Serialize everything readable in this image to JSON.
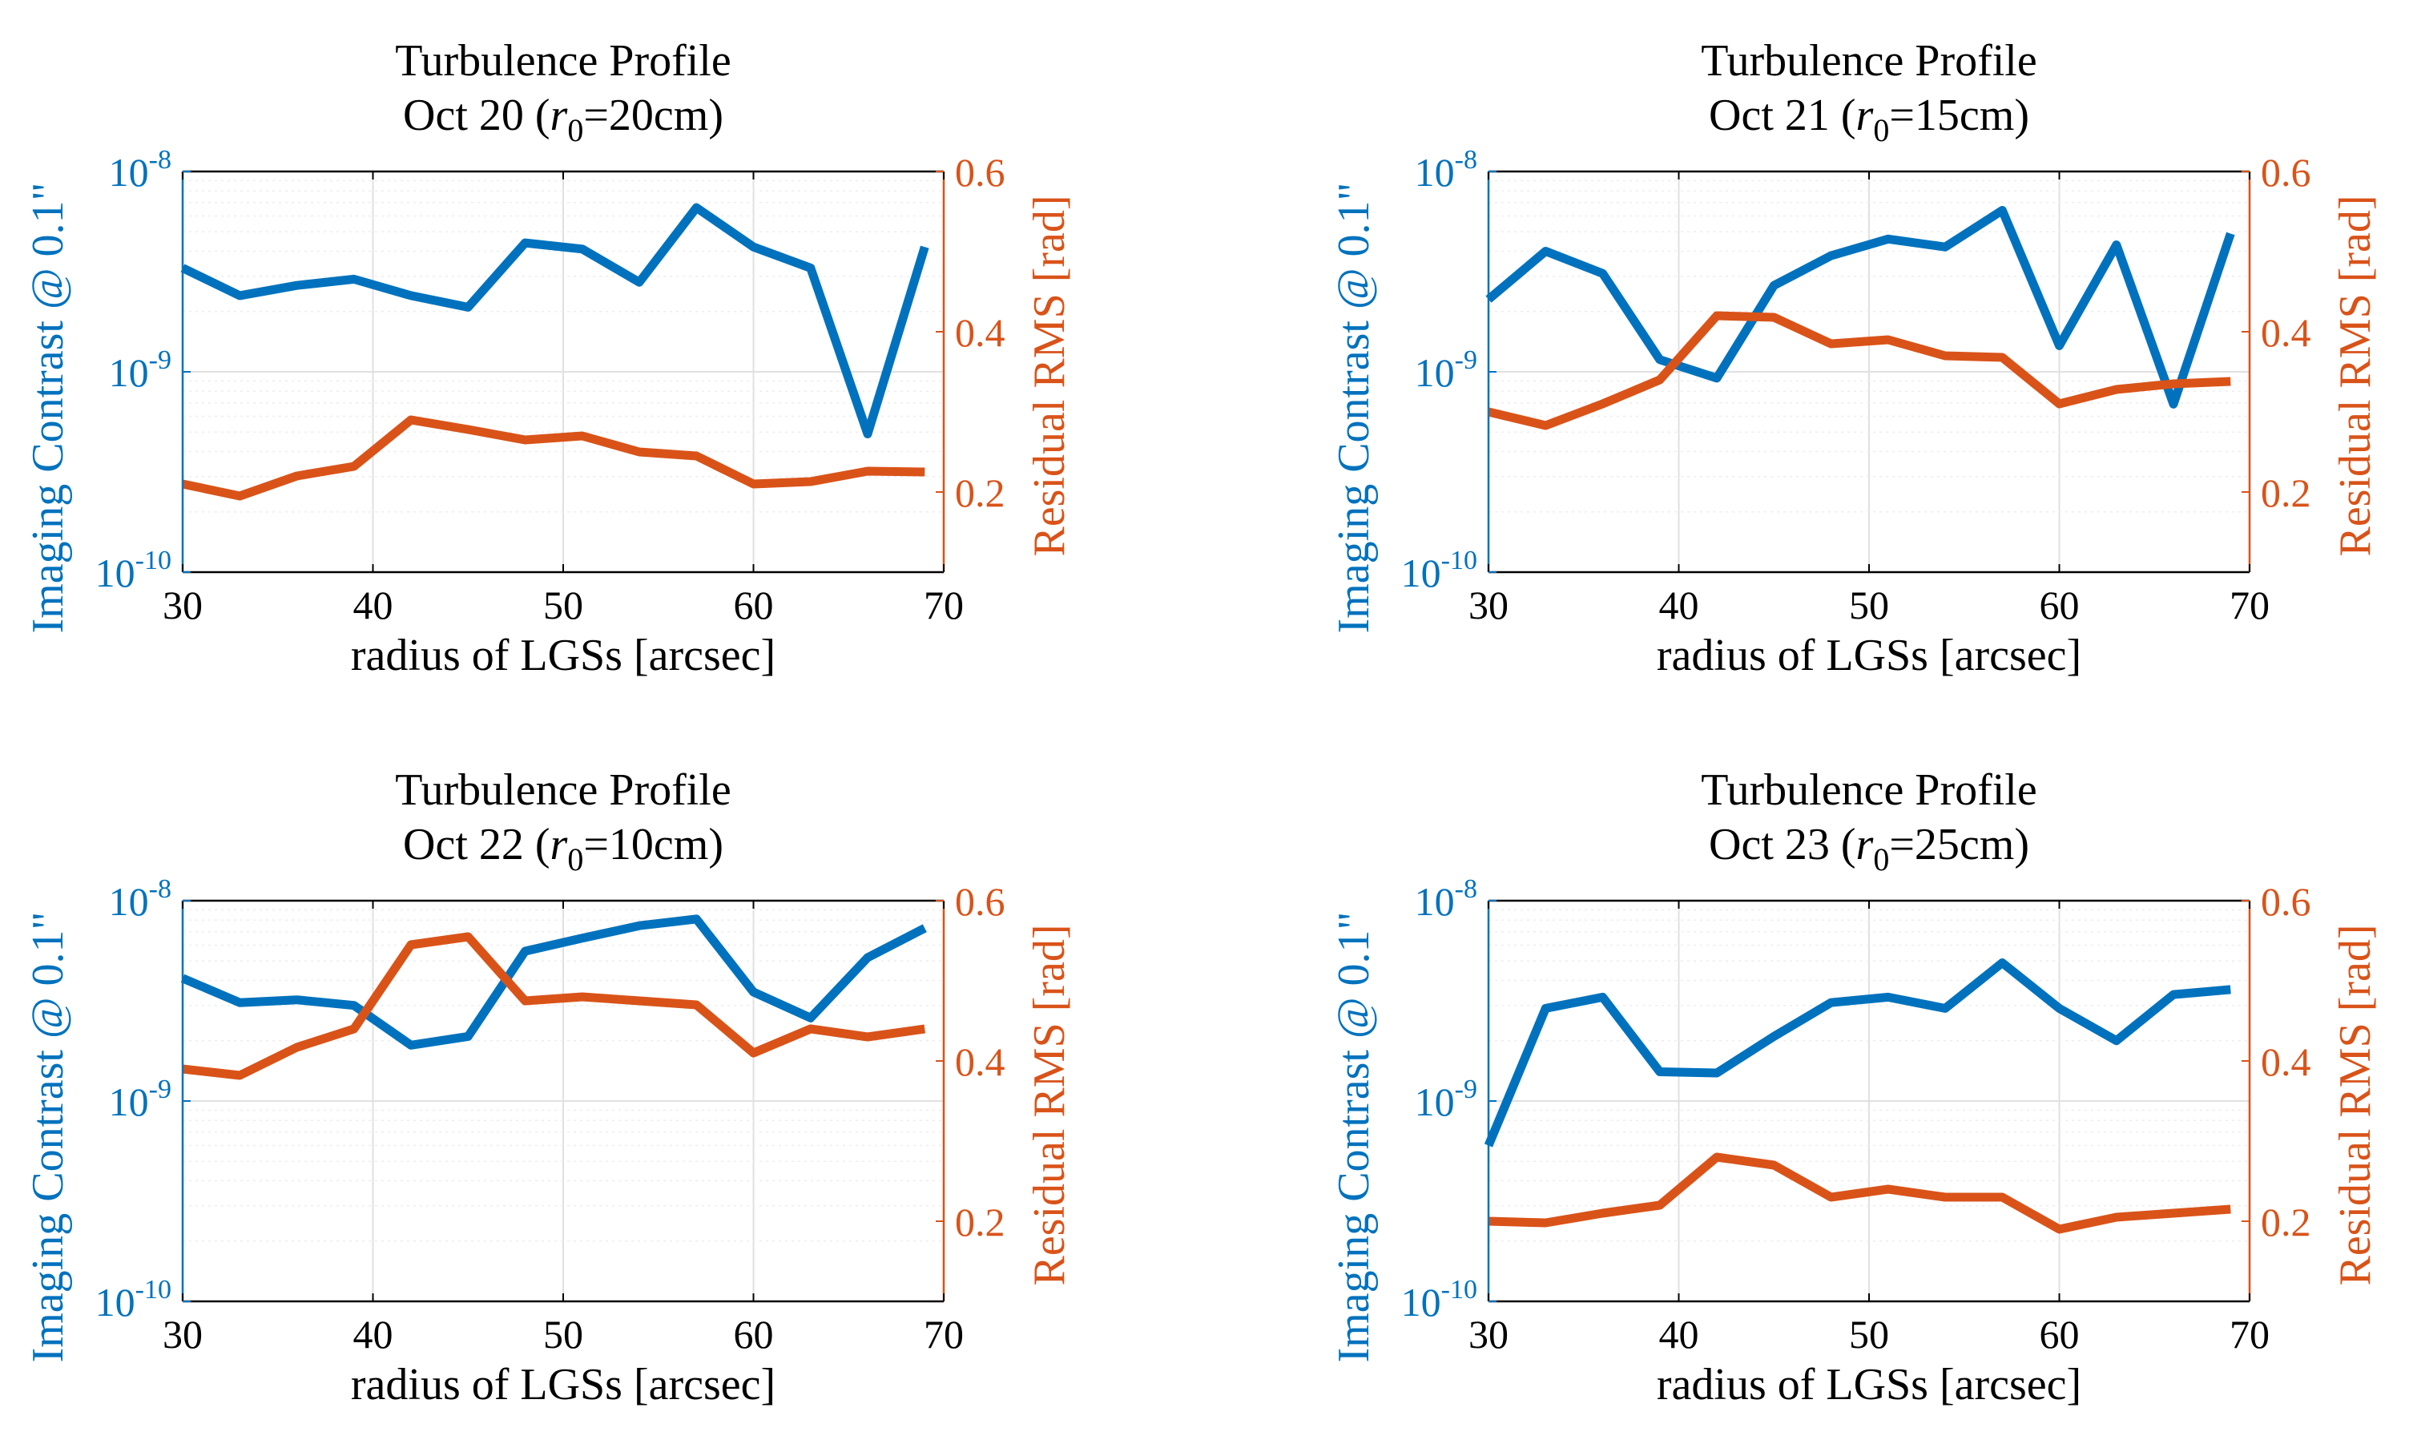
{
  "colors": {
    "left_axis": "#0072BD",
    "right_axis": "#D95319",
    "grid": "#e0e0e0",
    "axes": "#000000"
  },
  "chart_data": [
    {
      "type": "line",
      "title": "Turbulence Profile",
      "subtitle": {
        "prefix": "Oct 20 (",
        "r": "r",
        "sub": "0",
        "suffix": "=20cm)"
      },
      "xlabel": "radius of LGSs [arcsec]",
      "ylabel_left": "Imaging Contrast @ 0.1\"",
      "ylabel_right": "Residual RMS [rad]",
      "xlim": [
        30,
        70
      ],
      "xticks": [
        30,
        40,
        50,
        60,
        70
      ],
      "ylim_left_log10": [
        -10,
        -8
      ],
      "yticks_left": [
        {
          "base": "10",
          "exp": "-10",
          "v": -10
        },
        {
          "base": "10",
          "exp": "-9",
          "v": -9
        },
        {
          "base": "10",
          "exp": "-8",
          "v": -8
        }
      ],
      "ylim_right": [
        0.1,
        0.6
      ],
      "yticks_right": [
        0.2,
        0.4,
        0.6
      ],
      "x": [
        30,
        33,
        36,
        39,
        42,
        45,
        48,
        51,
        54,
        57,
        60,
        63,
        66,
        69
      ],
      "series": [
        {
          "name": "Imaging Contrast",
          "axis": "left",
          "color": "#0072BD",
          "values": [
            3.3e-09,
            2.4e-09,
            2.7e-09,
            2.9e-09,
            2.4e-09,
            2.1e-09,
            4.4e-09,
            4.1e-09,
            2.8e-09,
            6.6e-09,
            4.2e-09,
            3.3e-09,
            4.9e-10,
            4.2e-09
          ]
        },
        {
          "name": "Residual RMS",
          "axis": "right",
          "color": "#D95319",
          "values": [
            0.21,
            0.195,
            0.22,
            0.232,
            0.29,
            0.278,
            0.265,
            0.27,
            0.25,
            0.245,
            0.21,
            0.213,
            0.226,
            0.225
          ]
        }
      ]
    },
    {
      "type": "line",
      "title": "Turbulence Profile",
      "subtitle": {
        "prefix": "Oct 21 (",
        "r": "r",
        "sub": "0",
        "suffix": "=15cm)"
      },
      "xlabel": "radius of LGSs [arcsec]",
      "ylabel_left": "Imaging Contrast @ 0.1\"",
      "ylabel_right": "Residual RMS [rad]",
      "xlim": [
        30,
        70
      ],
      "xticks": [
        30,
        40,
        50,
        60,
        70
      ],
      "ylim_left_log10": [
        -10,
        -8
      ],
      "yticks_left": [
        {
          "base": "10",
          "exp": "-10",
          "v": -10
        },
        {
          "base": "10",
          "exp": "-9",
          "v": -9
        },
        {
          "base": "10",
          "exp": "-8",
          "v": -8
        }
      ],
      "ylim_right": [
        0.1,
        0.6
      ],
      "yticks_right": [
        0.2,
        0.4,
        0.6
      ],
      "x": [
        30,
        33,
        36,
        39,
        42,
        45,
        48,
        51,
        54,
        57,
        60,
        63,
        66,
        69
      ],
      "series": [
        {
          "name": "Imaging Contrast",
          "axis": "left",
          "color": "#0072BD",
          "values": [
            2.3e-09,
            4e-09,
            3.1e-09,
            1.15e-09,
            9.3e-10,
            2.7e-09,
            3.8e-09,
            4.6e-09,
            4.2e-09,
            6.4e-09,
            1.35e-09,
            4.3e-09,
            6.9e-10,
            4.9e-09
          ]
        },
        {
          "name": "Residual RMS",
          "axis": "right",
          "color": "#D95319",
          "values": [
            0.3,
            0.283,
            0.31,
            0.34,
            0.42,
            0.418,
            0.385,
            0.39,
            0.37,
            0.368,
            0.31,
            0.328,
            0.335,
            0.338
          ]
        }
      ]
    },
    {
      "type": "line",
      "title": "Turbulence Profile",
      "subtitle": {
        "prefix": "Oct 22 (",
        "r": "r",
        "sub": "0",
        "suffix": "=10cm)"
      },
      "xlabel": "radius of LGSs [arcsec]",
      "ylabel_left": "Imaging Contrast @ 0.1\"",
      "ylabel_right": "Residual RMS [rad]",
      "xlim": [
        30,
        70
      ],
      "xticks": [
        30,
        40,
        50,
        60,
        70
      ],
      "ylim_left_log10": [
        -10,
        -8
      ],
      "yticks_left": [
        {
          "base": "10",
          "exp": "-10",
          "v": -10
        },
        {
          "base": "10",
          "exp": "-9",
          "v": -9
        },
        {
          "base": "10",
          "exp": "-8",
          "v": -8
        }
      ],
      "ylim_right": [
        0.1,
        0.6
      ],
      "yticks_right": [
        0.2,
        0.4,
        0.6
      ],
      "x": [
        30,
        33,
        36,
        39,
        42,
        45,
        48,
        51,
        54,
        57,
        60,
        63,
        66,
        69
      ],
      "series": [
        {
          "name": "Imaging Contrast",
          "axis": "left",
          "color": "#0072BD",
          "values": [
            4.1e-09,
            3.1e-09,
            3.2e-09,
            3e-09,
            1.9e-09,
            2.1e-09,
            5.6e-09,
            6.5e-09,
            7.5e-09,
            8.1e-09,
            3.5e-09,
            2.6e-09,
            5.2e-09,
            7.3e-09
          ]
        },
        {
          "name": "Residual RMS",
          "axis": "right",
          "color": "#D95319",
          "values": [
            0.39,
            0.382,
            0.417,
            0.44,
            0.545,
            0.555,
            0.475,
            0.48,
            0.475,
            0.47,
            0.41,
            0.44,
            0.43,
            0.44
          ]
        }
      ]
    },
    {
      "type": "line",
      "title": "Turbulence Profile",
      "subtitle": {
        "prefix": "Oct 23 (",
        "r": "r",
        "sub": "0",
        "suffix": "=25cm)"
      },
      "xlabel": "radius of LGSs [arcsec]",
      "ylabel_left": "Imaging Contrast @ 0.1\"",
      "ylabel_right": "Residual RMS [rad]",
      "xlim": [
        30,
        70
      ],
      "xticks": [
        30,
        40,
        50,
        60,
        70
      ],
      "ylim_left_log10": [
        -10,
        -8
      ],
      "yticks_left": [
        {
          "base": "10",
          "exp": "-10",
          "v": -10
        },
        {
          "base": "10",
          "exp": "-9",
          "v": -9
        },
        {
          "base": "10",
          "exp": "-8",
          "v": -8
        }
      ],
      "ylim_right": [
        0.1,
        0.6
      ],
      "yticks_right": [
        0.2,
        0.4,
        0.6
      ],
      "x": [
        30,
        33,
        36,
        39,
        42,
        45,
        48,
        51,
        54,
        57,
        60,
        63,
        66,
        69
      ],
      "series": [
        {
          "name": "Imaging Contrast",
          "axis": "left",
          "color": "#0072BD",
          "values": [
            6e-10,
            2.9e-09,
            3.3e-09,
            1.4e-09,
            1.38e-09,
            2.1e-09,
            3.1e-09,
            3.3e-09,
            2.9e-09,
            4.9e-09,
            2.9e-09,
            2e-09,
            3.4e-09,
            3.6e-09
          ]
        },
        {
          "name": "Residual RMS",
          "axis": "right",
          "color": "#D95319",
          "values": [
            0.2,
            0.198,
            0.21,
            0.22,
            0.28,
            0.27,
            0.23,
            0.24,
            0.23,
            0.23,
            0.19,
            0.205,
            0.21,
            0.215
          ]
        }
      ]
    }
  ]
}
